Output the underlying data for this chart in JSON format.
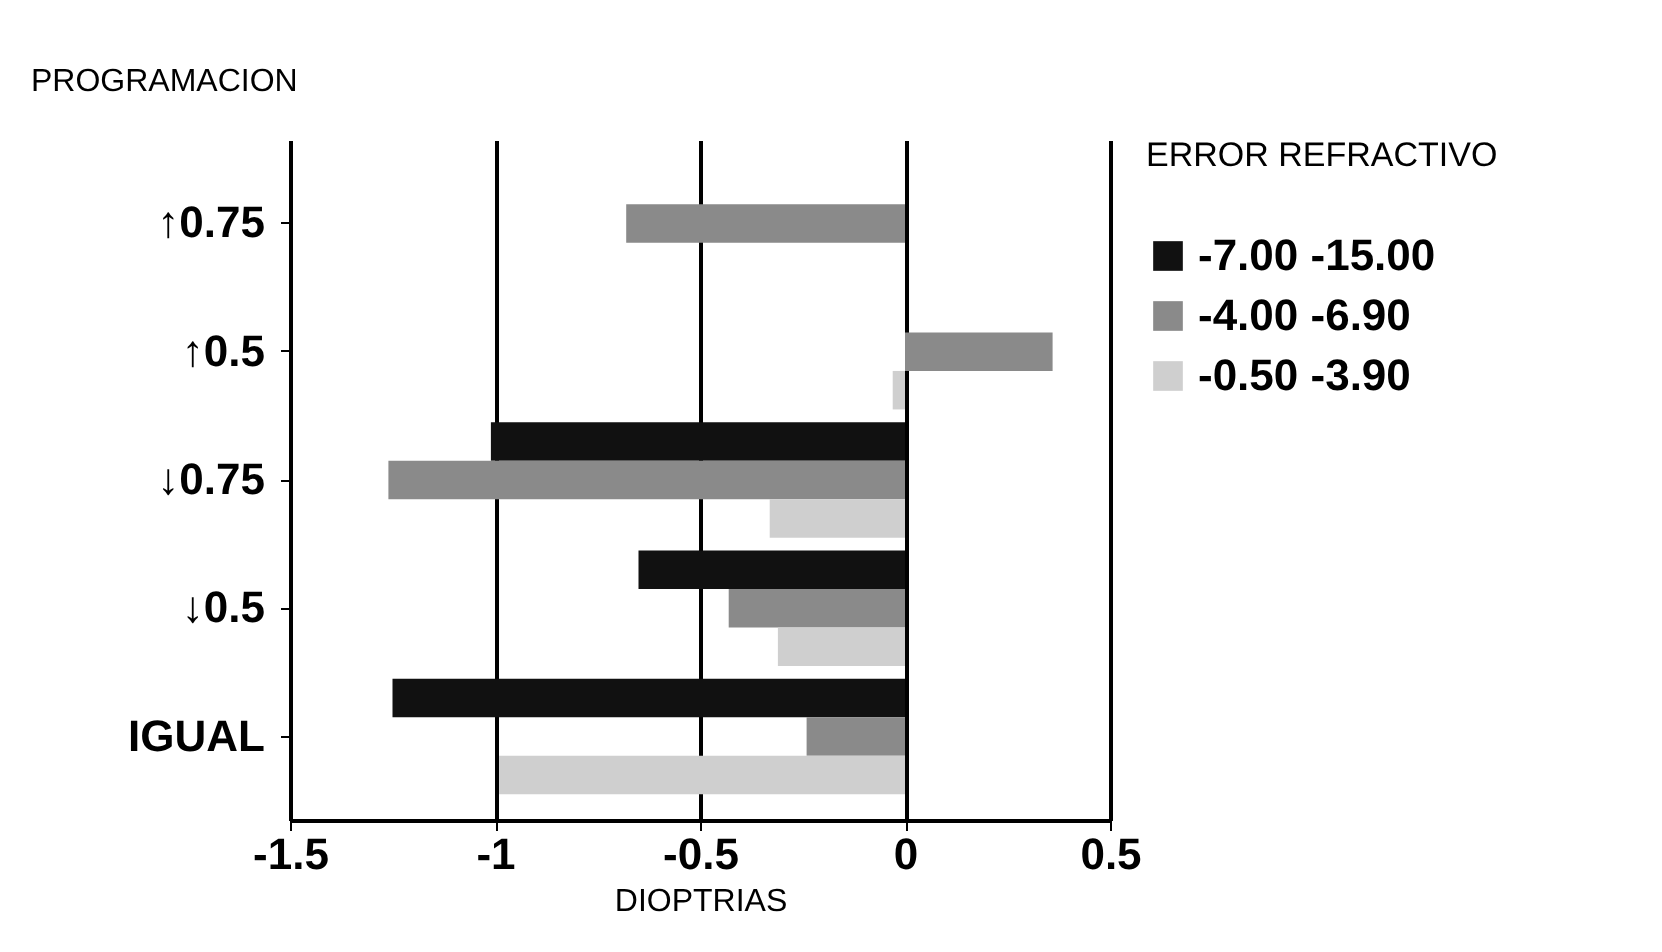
{
  "chart_data": {
    "type": "bar",
    "orientation": "horizontal",
    "xlabel": "DIOPTRIAS",
    "ylabel": "PROGRAMACION",
    "legend_title": "ERROR REFRACTIVO",
    "categories": [
      "↑0.75",
      "↑0.5",
      "↓0.75",
      "↓0.5",
      "IGUAL"
    ],
    "series": [
      {
        "name": "-7.00  -15.00",
        "color": "#111111",
        "values": [
          null,
          null,
          -1.01,
          -0.65,
          -1.25
        ]
      },
      {
        "name": "-4.00  -6.90",
        "color": "#8a8a8a",
        "values": [
          -0.68,
          0.36,
          -1.26,
          -0.43,
          -0.24
        ]
      },
      {
        "name": "-0.50  -3.90",
        "color": "#cfcfcf",
        "values": [
          null,
          -0.03,
          -0.33,
          -0.31,
          -0.99
        ]
      }
    ],
    "xlim": [
      -1.5,
      0.5
    ],
    "xticks": [
      -1.5,
      -1,
      -0.5,
      0,
      0.5
    ],
    "grid": "x",
    "legend": "right"
  }
}
